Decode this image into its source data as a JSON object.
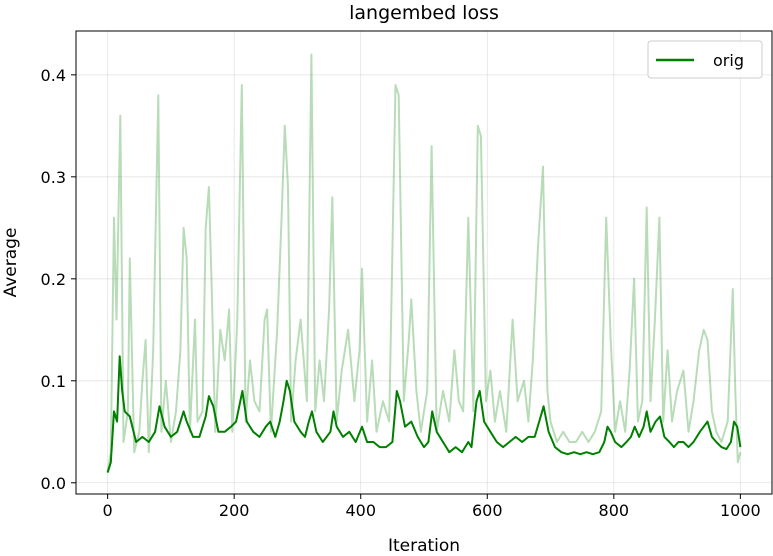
{
  "chart_data": {
    "type": "line",
    "title": "langembed loss",
    "xlabel": "Iteration",
    "ylabel": "Average",
    "xlim": [
      -50,
      1050
    ],
    "ylim": [
      -0.011,
      0.443
    ],
    "grid": true,
    "legend_placement": "top-right",
    "x_ticks": [
      0,
      200,
      400,
      600,
      800,
      1000
    ],
    "x_tick_labels": [
      "0",
      "200",
      "400",
      "600",
      "800",
      "1000"
    ],
    "y_ticks": [
      0.0,
      0.1,
      0.2,
      0.3,
      0.4
    ],
    "y_tick_labels": [
      "0.0",
      "0.1",
      "0.2",
      "0.3",
      "0.4"
    ],
    "series": [
      {
        "name": "orig",
        "color": "#008000",
        "raw_color": "#008000",
        "raw_opacity": 0.28,
        "smoothing": 0.9,
        "raw_points": [
          [
            0,
            0.01
          ],
          [
            5,
            0.03
          ],
          [
            10,
            0.26
          ],
          [
            14,
            0.16
          ],
          [
            20,
            0.36
          ],
          [
            25,
            0.04
          ],
          [
            32,
            0.07
          ],
          [
            35,
            0.22
          ],
          [
            42,
            0.03
          ],
          [
            50,
            0.05
          ],
          [
            55,
            0.1
          ],
          [
            60,
            0.14
          ],
          [
            65,
            0.03
          ],
          [
            72,
            0.13
          ],
          [
            80,
            0.38
          ],
          [
            85,
            0.05
          ],
          [
            92,
            0.1
          ],
          [
            100,
            0.04
          ],
          [
            108,
            0.07
          ],
          [
            115,
            0.13
          ],
          [
            120,
            0.25
          ],
          [
            125,
            0.22
          ],
          [
            130,
            0.05
          ],
          [
            138,
            0.16
          ],
          [
            142,
            0.06
          ],
          [
            150,
            0.07
          ],
          [
            155,
            0.25
          ],
          [
            160,
            0.29
          ],
          [
            165,
            0.18
          ],
          [
            170,
            0.05
          ],
          [
            178,
            0.15
          ],
          [
            185,
            0.12
          ],
          [
            192,
            0.17
          ],
          [
            197,
            0.05
          ],
          [
            205,
            0.16
          ],
          [
            212,
            0.39
          ],
          [
            218,
            0.06
          ],
          [
            225,
            0.12
          ],
          [
            232,
            0.08
          ],
          [
            240,
            0.07
          ],
          [
            248,
            0.16
          ],
          [
            252,
            0.17
          ],
          [
            258,
            0.05
          ],
          [
            268,
            0.15
          ],
          [
            275,
            0.26
          ],
          [
            280,
            0.35
          ],
          [
            285,
            0.29
          ],
          [
            290,
            0.06
          ],
          [
            297,
            0.12
          ],
          [
            305,
            0.16
          ],
          [
            315,
            0.08
          ],
          [
            322,
            0.42
          ],
          [
            328,
            0.07
          ],
          [
            335,
            0.12
          ],
          [
            342,
            0.08
          ],
          [
            350,
            0.17
          ],
          [
            355,
            0.28
          ],
          [
            362,
            0.06
          ],
          [
            370,
            0.11
          ],
          [
            380,
            0.15
          ],
          [
            390,
            0.08
          ],
          [
            398,
            0.13
          ],
          [
            402,
            0.21
          ],
          [
            410,
            0.06
          ],
          [
            418,
            0.12
          ],
          [
            425,
            0.05
          ],
          [
            435,
            0.08
          ],
          [
            445,
            0.06
          ],
          [
            455,
            0.39
          ],
          [
            460,
            0.38
          ],
          [
            468,
            0.08
          ],
          [
            476,
            0.14
          ],
          [
            480,
            0.18
          ],
          [
            488,
            0.09
          ],
          [
            495,
            0.05
          ],
          [
            505,
            0.09
          ],
          [
            512,
            0.33
          ],
          [
            520,
            0.05
          ],
          [
            530,
            0.09
          ],
          [
            540,
            0.06
          ],
          [
            548,
            0.13
          ],
          [
            555,
            0.08
          ],
          [
            562,
            0.07
          ],
          [
            570,
            0.26
          ],
          [
            578,
            0.07
          ],
          [
            585,
            0.35
          ],
          [
            590,
            0.34
          ],
          [
            598,
            0.08
          ],
          [
            605,
            0.11
          ],
          [
            612,
            0.06
          ],
          [
            620,
            0.09
          ],
          [
            630,
            0.05
          ],
          [
            640,
            0.16
          ],
          [
            648,
            0.08
          ],
          [
            658,
            0.1
          ],
          [
            665,
            0.06
          ],
          [
            672,
            0.12
          ],
          [
            680,
            0.23
          ],
          [
            688,
            0.31
          ],
          [
            695,
            0.09
          ],
          [
            700,
            0.06
          ],
          [
            710,
            0.04
          ],
          [
            720,
            0.05
          ],
          [
            730,
            0.04
          ],
          [
            740,
            0.04
          ],
          [
            750,
            0.05
          ],
          [
            760,
            0.04
          ],
          [
            770,
            0.05
          ],
          [
            780,
            0.07
          ],
          [
            788,
            0.26
          ],
          [
            795,
            0.14
          ],
          [
            802,
            0.05
          ],
          [
            810,
            0.08
          ],
          [
            818,
            0.05
          ],
          [
            825,
            0.11
          ],
          [
            832,
            0.2
          ],
          [
            838,
            0.06
          ],
          [
            845,
            0.08
          ],
          [
            852,
            0.27
          ],
          [
            858,
            0.08
          ],
          [
            865,
            0.16
          ],
          [
            872,
            0.26
          ],
          [
            878,
            0.06
          ],
          [
            885,
            0.13
          ],
          [
            892,
            0.06
          ],
          [
            900,
            0.09
          ],
          [
            910,
            0.11
          ],
          [
            918,
            0.05
          ],
          [
            926,
            0.08
          ],
          [
            935,
            0.13
          ],
          [
            942,
            0.15
          ],
          [
            948,
            0.14
          ],
          [
            955,
            0.07
          ],
          [
            962,
            0.05
          ],
          [
            970,
            0.04
          ],
          [
            980,
            0.06
          ],
          [
            988,
            0.19
          ],
          [
            992,
            0.09
          ],
          [
            996,
            0.02
          ],
          [
            1000,
            0.03
          ]
        ],
        "smoothed_points": [
          [
            0,
            0.01
          ],
          [
            5,
            0.02
          ],
          [
            10,
            0.07
          ],
          [
            15,
            0.06
          ],
          [
            19,
            0.124
          ],
          [
            23,
            0.09
          ],
          [
            27,
            0.07
          ],
          [
            35,
            0.065
          ],
          [
            45,
            0.04
          ],
          [
            55,
            0.045
          ],
          [
            65,
            0.04
          ],
          [
            75,
            0.05
          ],
          [
            82,
            0.075
          ],
          [
            90,
            0.055
          ],
          [
            100,
            0.045
          ],
          [
            110,
            0.05
          ],
          [
            120,
            0.07
          ],
          [
            125,
            0.06
          ],
          [
            135,
            0.045
          ],
          [
            145,
            0.045
          ],
          [
            155,
            0.065
          ],
          [
            160,
            0.085
          ],
          [
            167,
            0.075
          ],
          [
            175,
            0.05
          ],
          [
            185,
            0.05
          ],
          [
            195,
            0.055
          ],
          [
            203,
            0.06
          ],
          [
            213,
            0.09
          ],
          [
            220,
            0.06
          ],
          [
            230,
            0.05
          ],
          [
            240,
            0.045
          ],
          [
            250,
            0.055
          ],
          [
            257,
            0.06
          ],
          [
            265,
            0.045
          ],
          [
            272,
            0.06
          ],
          [
            278,
            0.08
          ],
          [
            283,
            0.1
          ],
          [
            288,
            0.09
          ],
          [
            295,
            0.06
          ],
          [
            305,
            0.05
          ],
          [
            312,
            0.045
          ],
          [
            318,
            0.06
          ],
          [
            323,
            0.07
          ],
          [
            330,
            0.05
          ],
          [
            340,
            0.04
          ],
          [
            352,
            0.05
          ],
          [
            357,
            0.07
          ],
          [
            362,
            0.055
          ],
          [
            372,
            0.045
          ],
          [
            382,
            0.05
          ],
          [
            392,
            0.04
          ],
          [
            402,
            0.055
          ],
          [
            410,
            0.04
          ],
          [
            420,
            0.04
          ],
          [
            430,
            0.035
          ],
          [
            440,
            0.035
          ],
          [
            450,
            0.04
          ],
          [
            457,
            0.09
          ],
          [
            462,
            0.08
          ],
          [
            470,
            0.055
          ],
          [
            480,
            0.06
          ],
          [
            490,
            0.045
          ],
          [
            500,
            0.035
          ],
          [
            507,
            0.04
          ],
          [
            513,
            0.07
          ],
          [
            520,
            0.05
          ],
          [
            530,
            0.04
          ],
          [
            540,
            0.03
          ],
          [
            550,
            0.035
          ],
          [
            560,
            0.03
          ],
          [
            570,
            0.04
          ],
          [
            575,
            0.035
          ],
          [
            583,
            0.08
          ],
          [
            588,
            0.09
          ],
          [
            595,
            0.06
          ],
          [
            605,
            0.05
          ],
          [
            615,
            0.04
          ],
          [
            625,
            0.035
          ],
          [
            635,
            0.04
          ],
          [
            645,
            0.045
          ],
          [
            655,
            0.04
          ],
          [
            665,
            0.045
          ],
          [
            675,
            0.045
          ],
          [
            682,
            0.06
          ],
          [
            689,
            0.075
          ],
          [
            697,
            0.05
          ],
          [
            707,
            0.035
          ],
          [
            717,
            0.03
          ],
          [
            727,
            0.028
          ],
          [
            737,
            0.03
          ],
          [
            747,
            0.028
          ],
          [
            757,
            0.03
          ],
          [
            767,
            0.028
          ],
          [
            777,
            0.03
          ],
          [
            785,
            0.04
          ],
          [
            790,
            0.055
          ],
          [
            795,
            0.05
          ],
          [
            802,
            0.04
          ],
          [
            812,
            0.035
          ],
          [
            820,
            0.04
          ],
          [
            827,
            0.045
          ],
          [
            833,
            0.055
          ],
          [
            840,
            0.045
          ],
          [
            847,
            0.055
          ],
          [
            852,
            0.07
          ],
          [
            858,
            0.05
          ],
          [
            866,
            0.06
          ],
          [
            873,
            0.065
          ],
          [
            880,
            0.045
          ],
          [
            888,
            0.04
          ],
          [
            895,
            0.035
          ],
          [
            902,
            0.04
          ],
          [
            910,
            0.04
          ],
          [
            918,
            0.035
          ],
          [
            926,
            0.04
          ],
          [
            936,
            0.05
          ],
          [
            942,
            0.055
          ],
          [
            948,
            0.06
          ],
          [
            955,
            0.045
          ],
          [
            962,
            0.04
          ],
          [
            970,
            0.035
          ],
          [
            978,
            0.033
          ],
          [
            985,
            0.04
          ],
          [
            990,
            0.06
          ],
          [
            995,
            0.055
          ],
          [
            1000,
            0.035
          ]
        ]
      }
    ]
  }
}
